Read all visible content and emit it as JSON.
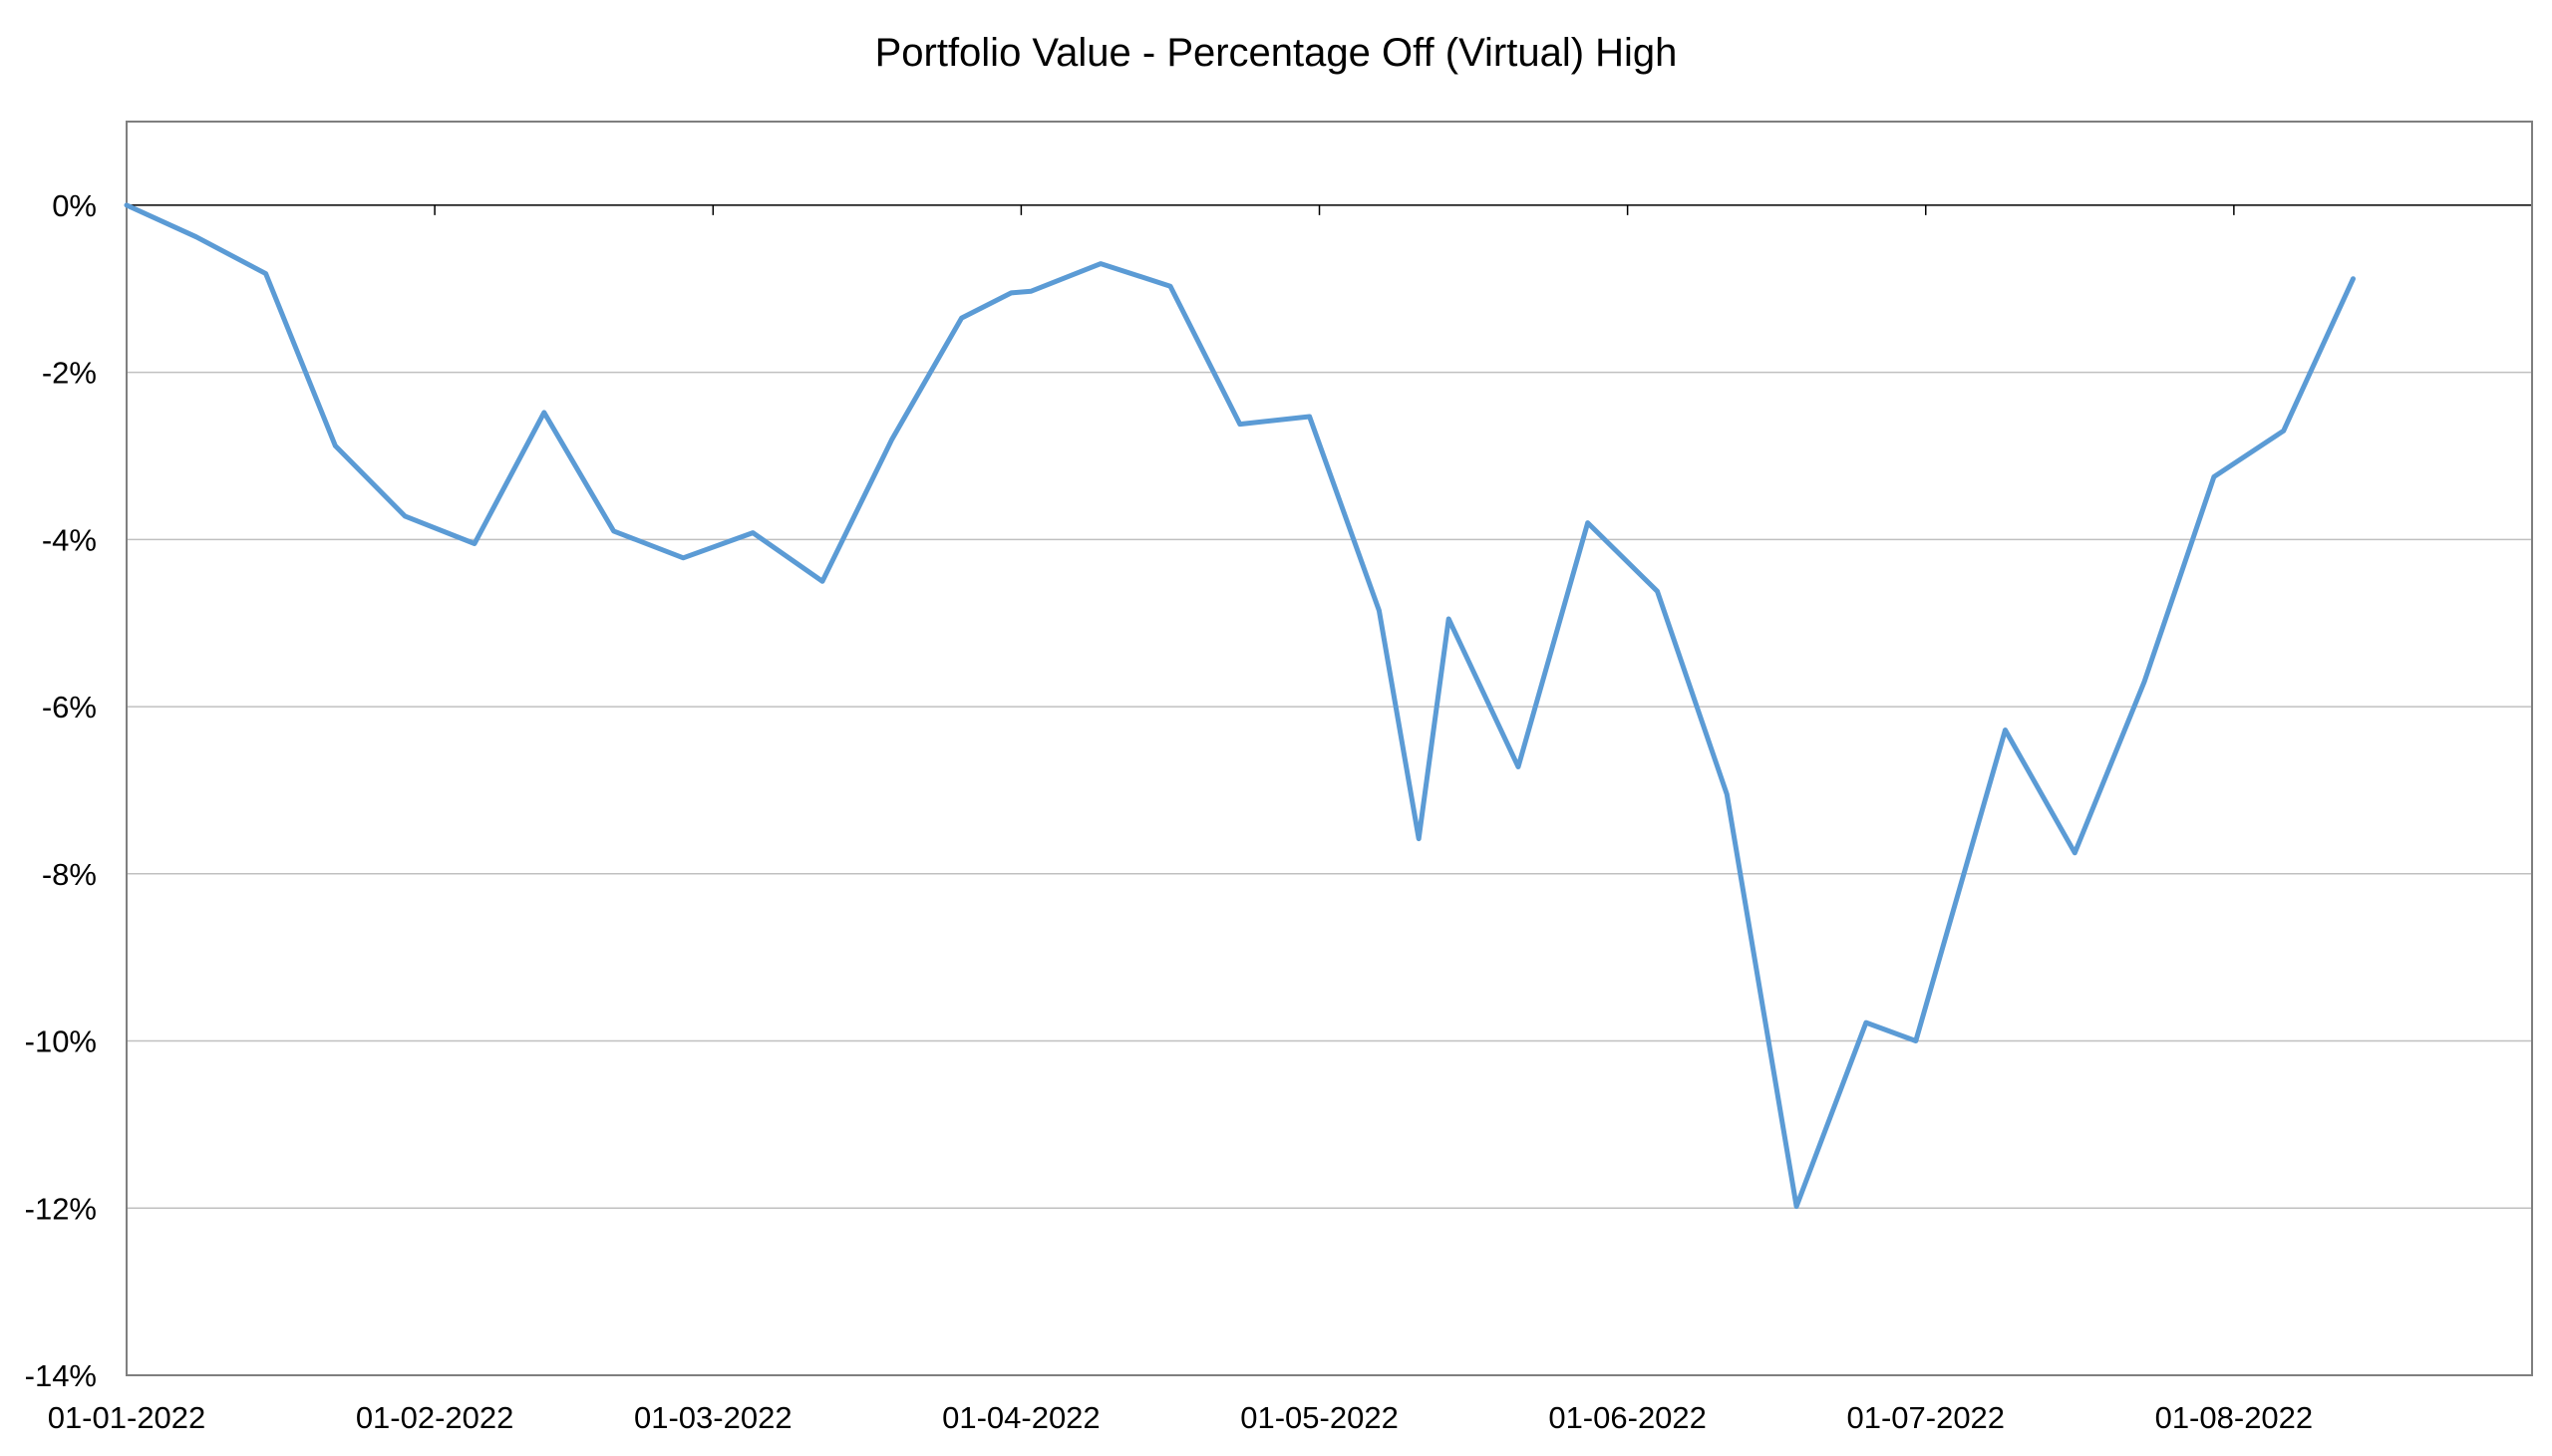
{
  "chart_data": {
    "type": "line",
    "title": "Portfolio Value - Percentage Off (Virtual) High",
    "xlabel": "",
    "ylabel": "",
    "x_range": [
      "2022-01-01",
      "2022-08-31"
    ],
    "ylim": [
      -14,
      1
    ],
    "y_ticks": [
      0,
      -2,
      -4,
      -6,
      -8,
      -10,
      -12,
      -14
    ],
    "y_tick_labels": [
      "0%",
      "-2%",
      "-4%",
      "-6%",
      "-8%",
      "-10%",
      "-12%",
      "-14%"
    ],
    "x_ticks": [
      "2022-01-01",
      "2022-02-01",
      "2022-03-01",
      "2022-04-01",
      "2022-05-01",
      "2022-06-01",
      "2022-07-01",
      "2022-08-01"
    ],
    "x_tick_labels": [
      "01-01-2022",
      "01-02-2022",
      "01-03-2022",
      "01-04-2022",
      "01-05-2022",
      "01-06-2022",
      "01-07-2022",
      "01-08-2022"
    ],
    "grid": true,
    "legend": "none",
    "series": [
      {
        "color": "#5b9bd5",
        "points": [
          {
            "x": "2022-01-01",
            "y": 0.0
          },
          {
            "x": "2022-01-08",
            "y": -0.38
          },
          {
            "x": "2022-01-15",
            "y": -0.82
          },
          {
            "x": "2022-01-22",
            "y": -2.88
          },
          {
            "x": "2022-01-29",
            "y": -3.72
          },
          {
            "x": "2022-02-05",
            "y": -4.05
          },
          {
            "x": "2022-02-12",
            "y": -2.48
          },
          {
            "x": "2022-02-19",
            "y": -3.9
          },
          {
            "x": "2022-02-26",
            "y": -4.22
          },
          {
            "x": "2022-03-05",
            "y": -3.92
          },
          {
            "x": "2022-03-12",
            "y": -4.5
          },
          {
            "x": "2022-03-19",
            "y": -2.8
          },
          {
            "x": "2022-03-26",
            "y": -1.35
          },
          {
            "x": "2022-03-31",
            "y": -1.05
          },
          {
            "x": "2022-04-02",
            "y": -1.03
          },
          {
            "x": "2022-04-09",
            "y": -0.7
          },
          {
            "x": "2022-04-16",
            "y": -0.97
          },
          {
            "x": "2022-04-23",
            "y": -2.62
          },
          {
            "x": "2022-04-30",
            "y": -2.53
          },
          {
            "x": "2022-05-07",
            "y": -4.85
          },
          {
            "x": "2022-05-11",
            "y": -7.58
          },
          {
            "x": "2022-05-14",
            "y": -4.95
          },
          {
            "x": "2022-05-21",
            "y": -6.72
          },
          {
            "x": "2022-05-28",
            "y": -3.8
          },
          {
            "x": "2022-06-04",
            "y": -4.62
          },
          {
            "x": "2022-06-11",
            "y": -7.05
          },
          {
            "x": "2022-06-18",
            "y": -11.98
          },
          {
            "x": "2022-06-25",
            "y": -9.78
          },
          {
            "x": "2022-06-30",
            "y": -10.0
          },
          {
            "x": "2022-07-09",
            "y": -6.28
          },
          {
            "x": "2022-07-16",
            "y": -7.75
          },
          {
            "x": "2022-07-23",
            "y": -5.7
          },
          {
            "x": "2022-07-30",
            "y": -3.25
          },
          {
            "x": "2022-08-06",
            "y": -2.7
          },
          {
            "x": "2022-08-13",
            "y": -0.88
          }
        ]
      }
    ]
  }
}
